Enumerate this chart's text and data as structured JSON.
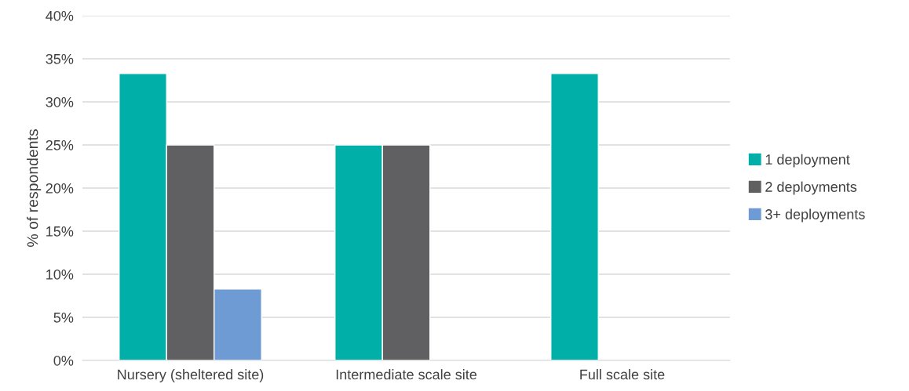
{
  "chart_data": {
    "type": "bar",
    "ylabel": "% of respondents",
    "categories": [
      "Nursery (sheltered site)",
      "Intermediate scale site",
      "Full scale site"
    ],
    "series": [
      {
        "name": "1 deployment",
        "color": "#00b0a8",
        "values": [
          33.3,
          25,
          33.3
        ]
      },
      {
        "name": "2 deployments",
        "color": "#606062",
        "values": [
          25,
          25,
          null
        ]
      },
      {
        "name": "3+ deployments",
        "color": "#6f9bd4",
        "values": [
          8.3,
          null,
          null
        ]
      }
    ],
    "ylim": [
      0,
      40
    ],
    "yticks": [
      {
        "value": 0,
        "label": "0%"
      },
      {
        "value": 5,
        "label": "5%"
      },
      {
        "value": 10,
        "label": "10%"
      },
      {
        "value": 15,
        "label": "15%"
      },
      {
        "value": 20,
        "label": "20%"
      },
      {
        "value": 25,
        "label": "25%"
      },
      {
        "value": 30,
        "label": "30%"
      },
      {
        "value": 35,
        "label": "35%"
      },
      {
        "value": 40,
        "label": "40%"
      }
    ],
    "grid": "y",
    "legend": "right"
  }
}
